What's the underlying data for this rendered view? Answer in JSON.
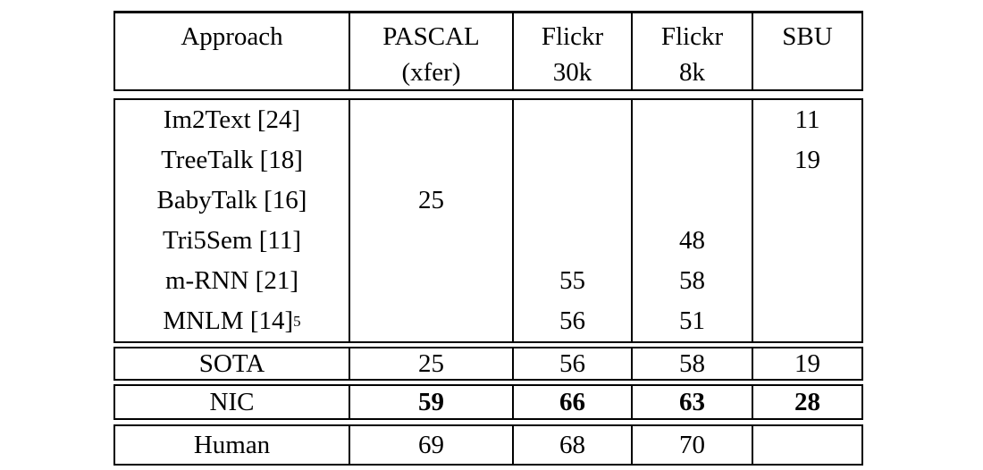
{
  "table": {
    "header": {
      "approach": {
        "line1": "Approach",
        "line2": ""
      },
      "pascal": {
        "line1": "PASCAL",
        "line2": "(xfer)"
      },
      "flickr30k": {
        "line1": "Flickr",
        "line2": "30k"
      },
      "flickr8k": {
        "line1": "Flickr",
        "line2": "8k"
      },
      "sbu": {
        "line1": "SBU",
        "line2": ""
      }
    },
    "body_rows": [
      {
        "approach": "Im2Text [24]",
        "approach_sup": "",
        "pascal": "",
        "flickr30k": "",
        "flickr8k": "",
        "sbu": "11"
      },
      {
        "approach": "TreeTalk [18]",
        "approach_sup": "",
        "pascal": "",
        "flickr30k": "",
        "flickr8k": "",
        "sbu": "19"
      },
      {
        "approach": "BabyTalk [16]",
        "approach_sup": "",
        "pascal": "25",
        "flickr30k": "",
        "flickr8k": "",
        "sbu": ""
      },
      {
        "approach": "Tri5Sem [11]",
        "approach_sup": "",
        "pascal": "",
        "flickr30k": "",
        "flickr8k": "48",
        "sbu": ""
      },
      {
        "approach": "m-RNN [21]",
        "approach_sup": "",
        "pascal": "",
        "flickr30k": "55",
        "flickr8k": "58",
        "sbu": ""
      },
      {
        "approach": "MNLM [14]",
        "approach_sup": "5",
        "pascal": "",
        "flickr30k": "56",
        "flickr8k": "51",
        "sbu": ""
      }
    ],
    "sota_row": {
      "approach": "SOTA",
      "pascal": "25",
      "flickr30k": "56",
      "flickr8k": "58",
      "sbu": "19"
    },
    "nic_row": {
      "approach": "NIC",
      "pascal": "59",
      "flickr30k": "66",
      "flickr8k": "63",
      "sbu": "28"
    },
    "human_row": {
      "approach": "Human",
      "pascal": "69",
      "flickr30k": "68",
      "flickr8k": "70",
      "sbu": ""
    }
  },
  "colors": {
    "border": "#000000",
    "background": "#ffffff",
    "text": "#000000"
  }
}
